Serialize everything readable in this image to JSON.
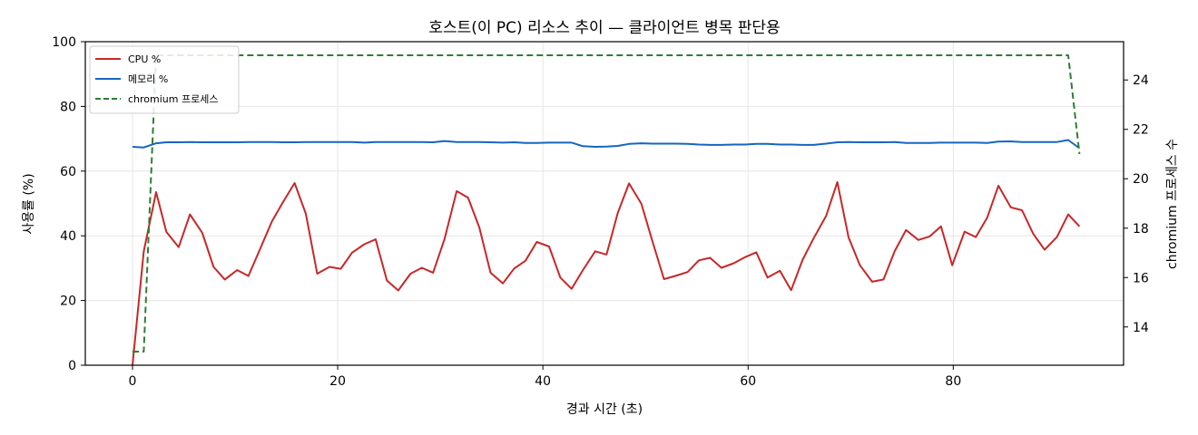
{
  "chart_data": {
    "type": "line",
    "title": "호스트(이 PC) 리소스 추이 — 클라이언트 병목 판단용",
    "xlabel": "경과 시간 (초)",
    "ylabel": "사용률 (%)",
    "y2label": "chromium 프로세스 수",
    "xlim": [
      -4.6,
      96.6
    ],
    "ylim": [
      0,
      100
    ],
    "y2lim": [
      12.45,
      25.55
    ],
    "xticks": [
      0,
      20,
      40,
      60,
      80
    ],
    "yticks": [
      0,
      20,
      40,
      60,
      80,
      100
    ],
    "y2ticks": [
      14,
      16,
      18,
      20,
      22,
      24
    ],
    "grid": true,
    "legend_position": "top-left",
    "series": [
      {
        "name": "CPU %",
        "axis": "left",
        "color": "#c62828",
        "style": "solid",
        "x": [
          0,
          1.1,
          2.3,
          3.3,
          4.5,
          5.6,
          6.8,
          7.9,
          9.0,
          10.2,
          11.3,
          12.4,
          13.6,
          14.7,
          15.8,
          16.9,
          18.0,
          19.2,
          20.3,
          21.4,
          22.6,
          23.7,
          24.8,
          25.9,
          27.1,
          28.2,
          29.3,
          30.4,
          31.6,
          32.7,
          33.8,
          34.9,
          36.1,
          37.2,
          38.3,
          39.4,
          40.6,
          41.7,
          42.8,
          43.9,
          45.1,
          46.2,
          47.3,
          48.4,
          49.6,
          50.7,
          51.8,
          52.9,
          54.1,
          55.2,
          56.3,
          57.4,
          58.6,
          59.7,
          60.8,
          61.9,
          63.1,
          64.2,
          65.3,
          66.4,
          67.6,
          68.7,
          69.8,
          70.9,
          72.1,
          73.2,
          74.3,
          75.4,
          76.6,
          77.7,
          78.8,
          79.9,
          81.1,
          82.2,
          83.3,
          84.4,
          85.6,
          86.7,
          87.8,
          88.9,
          90.1,
          91.2,
          92.3
        ],
        "values": [
          0,
          35.2,
          53.5,
          41.2,
          36.5,
          46.6,
          40.9,
          30.4,
          26.5,
          29.4,
          27.6,
          35.7,
          44.5,
          50.6,
          56.3,
          46.8,
          28.3,
          30.4,
          29.8,
          34.8,
          37.4,
          38.9,
          26.2,
          23.1,
          28.3,
          30.1,
          28.6,
          38.9,
          53.8,
          51.8,
          42.6,
          28.6,
          25.3,
          29.9,
          32.3,
          38.1,
          36.7,
          27.1,
          23.6,
          29.4,
          35.2,
          34.2,
          47.1,
          56.2,
          49.9,
          38.1,
          26.6,
          27.6,
          28.8,
          32.4,
          33.2,
          30.1,
          31.5,
          33.4,
          34.9,
          27.1,
          29.2,
          23.2,
          32.5,
          39.3,
          46.1,
          56.6,
          39.5,
          30.9,
          25.8,
          26.5,
          35.3,
          41.8,
          38.7,
          39.8,
          42.9,
          30.9,
          41.3,
          39.6,
          45.6,
          55.5,
          48.8,
          47.9,
          40.6,
          35.7,
          39.6,
          46.6,
          42.9
        ]
      },
      {
        "name": "메모리 %",
        "axis": "left",
        "color": "#1565c0",
        "style": "solid",
        "x": [
          0,
          1.1,
          2.3,
          3.3,
          4.5,
          5.6,
          6.8,
          7.9,
          9.0,
          10.2,
          11.3,
          12.4,
          13.6,
          14.7,
          15.8,
          16.9,
          18.0,
          19.2,
          20.3,
          21.4,
          22.6,
          23.7,
          24.8,
          25.9,
          27.1,
          28.2,
          29.3,
          30.4,
          31.6,
          32.7,
          33.8,
          34.9,
          36.1,
          37.2,
          38.3,
          39.4,
          40.6,
          41.7,
          42.8,
          43.9,
          45.1,
          46.2,
          47.3,
          48.4,
          49.6,
          50.7,
          51.8,
          52.9,
          54.1,
          55.2,
          56.3,
          57.4,
          58.6,
          59.7,
          60.8,
          61.9,
          63.1,
          64.2,
          65.3,
          66.4,
          67.6,
          68.7,
          69.8,
          70.9,
          72.1,
          73.2,
          74.3,
          75.4,
          76.6,
          77.7,
          78.8,
          79.9,
          81.1,
          82.2,
          83.3,
          84.4,
          85.6,
          86.7,
          87.8,
          88.9,
          90.1,
          91.2,
          92.3
        ],
        "values": [
          67.5,
          67.3,
          68.6,
          68.9,
          68.9,
          69.0,
          68.9,
          68.9,
          68.9,
          68.9,
          69.0,
          69.0,
          69.0,
          68.9,
          68.9,
          69.0,
          69.0,
          69.0,
          69.0,
          69.0,
          68.8,
          69.0,
          69.0,
          69.0,
          69.0,
          69.0,
          68.9,
          69.3,
          69.0,
          69.0,
          69.0,
          68.9,
          68.8,
          68.9,
          68.7,
          68.7,
          68.8,
          68.8,
          68.8,
          67.7,
          67.5,
          67.6,
          67.8,
          68.4,
          68.6,
          68.5,
          68.5,
          68.5,
          68.4,
          68.2,
          68.1,
          68.1,
          68.2,
          68.2,
          68.4,
          68.4,
          68.2,
          68.2,
          68.1,
          68.1,
          68.5,
          68.9,
          69.0,
          68.9,
          68.9,
          68.9,
          69.0,
          68.7,
          68.7,
          68.7,
          68.8,
          68.8,
          68.8,
          68.8,
          68.7,
          69.1,
          69.2,
          69.0,
          69.0,
          69.0,
          69.0,
          69.6,
          67.1
        ]
      },
      {
        "name": "chromium 프로세스",
        "axis": "right",
        "color": "#2e7d32",
        "style": "dashed",
        "x": [
          0,
          1.1,
          2.3,
          91.2,
          92.3
        ],
        "values": [
          13,
          13,
          25,
          25,
          21
        ]
      }
    ]
  }
}
